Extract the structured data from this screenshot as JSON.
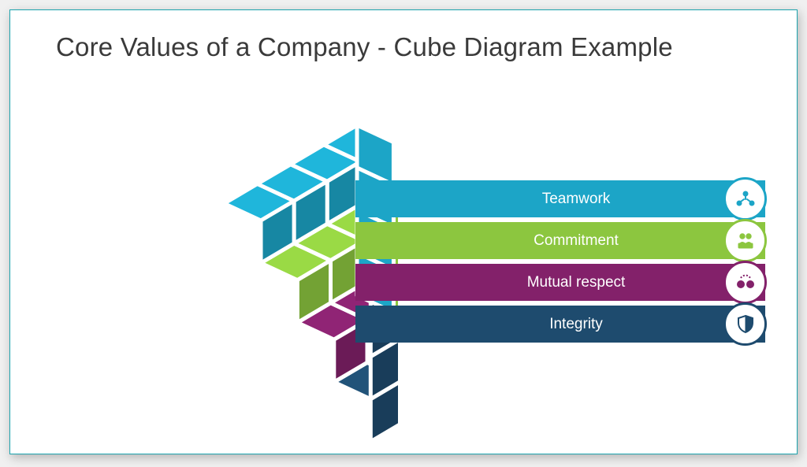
{
  "title": "Core Values of a Company - Cube Diagram Example",
  "colors": {
    "navy": "#1e4b6e",
    "magenta": "#83216a",
    "lime": "#8cc63f",
    "cyan": "#1ca5c7",
    "title_text": "#3a3a3a",
    "bar_text": "#ffffff",
    "slide_border": "#1ba3ad",
    "cube_gap": "#ffffff"
  },
  "bars": [
    {
      "label": "Teamwork",
      "color": "#1ca5c7",
      "icon": "teamwork-icon"
    },
    {
      "label": "Commitment",
      "color": "#8cc63f",
      "icon": "commitment-icon"
    },
    {
      "label": "Mutual respect",
      "color": "#83216a",
      "icon": "respect-icon"
    },
    {
      "label": "Integrity",
      "color": "#1e4b6e",
      "icon": "shield-icon"
    }
  ],
  "cube": {
    "size": 4,
    "cell": 54,
    "gap": 5,
    "layer_colors": [
      "#1e4b6e",
      "#83216a",
      "#8cc63f",
      "#1ca5c7"
    ],
    "front_shade": 1.0,
    "top_shade": 1.1,
    "side_shade": 0.82
  }
}
